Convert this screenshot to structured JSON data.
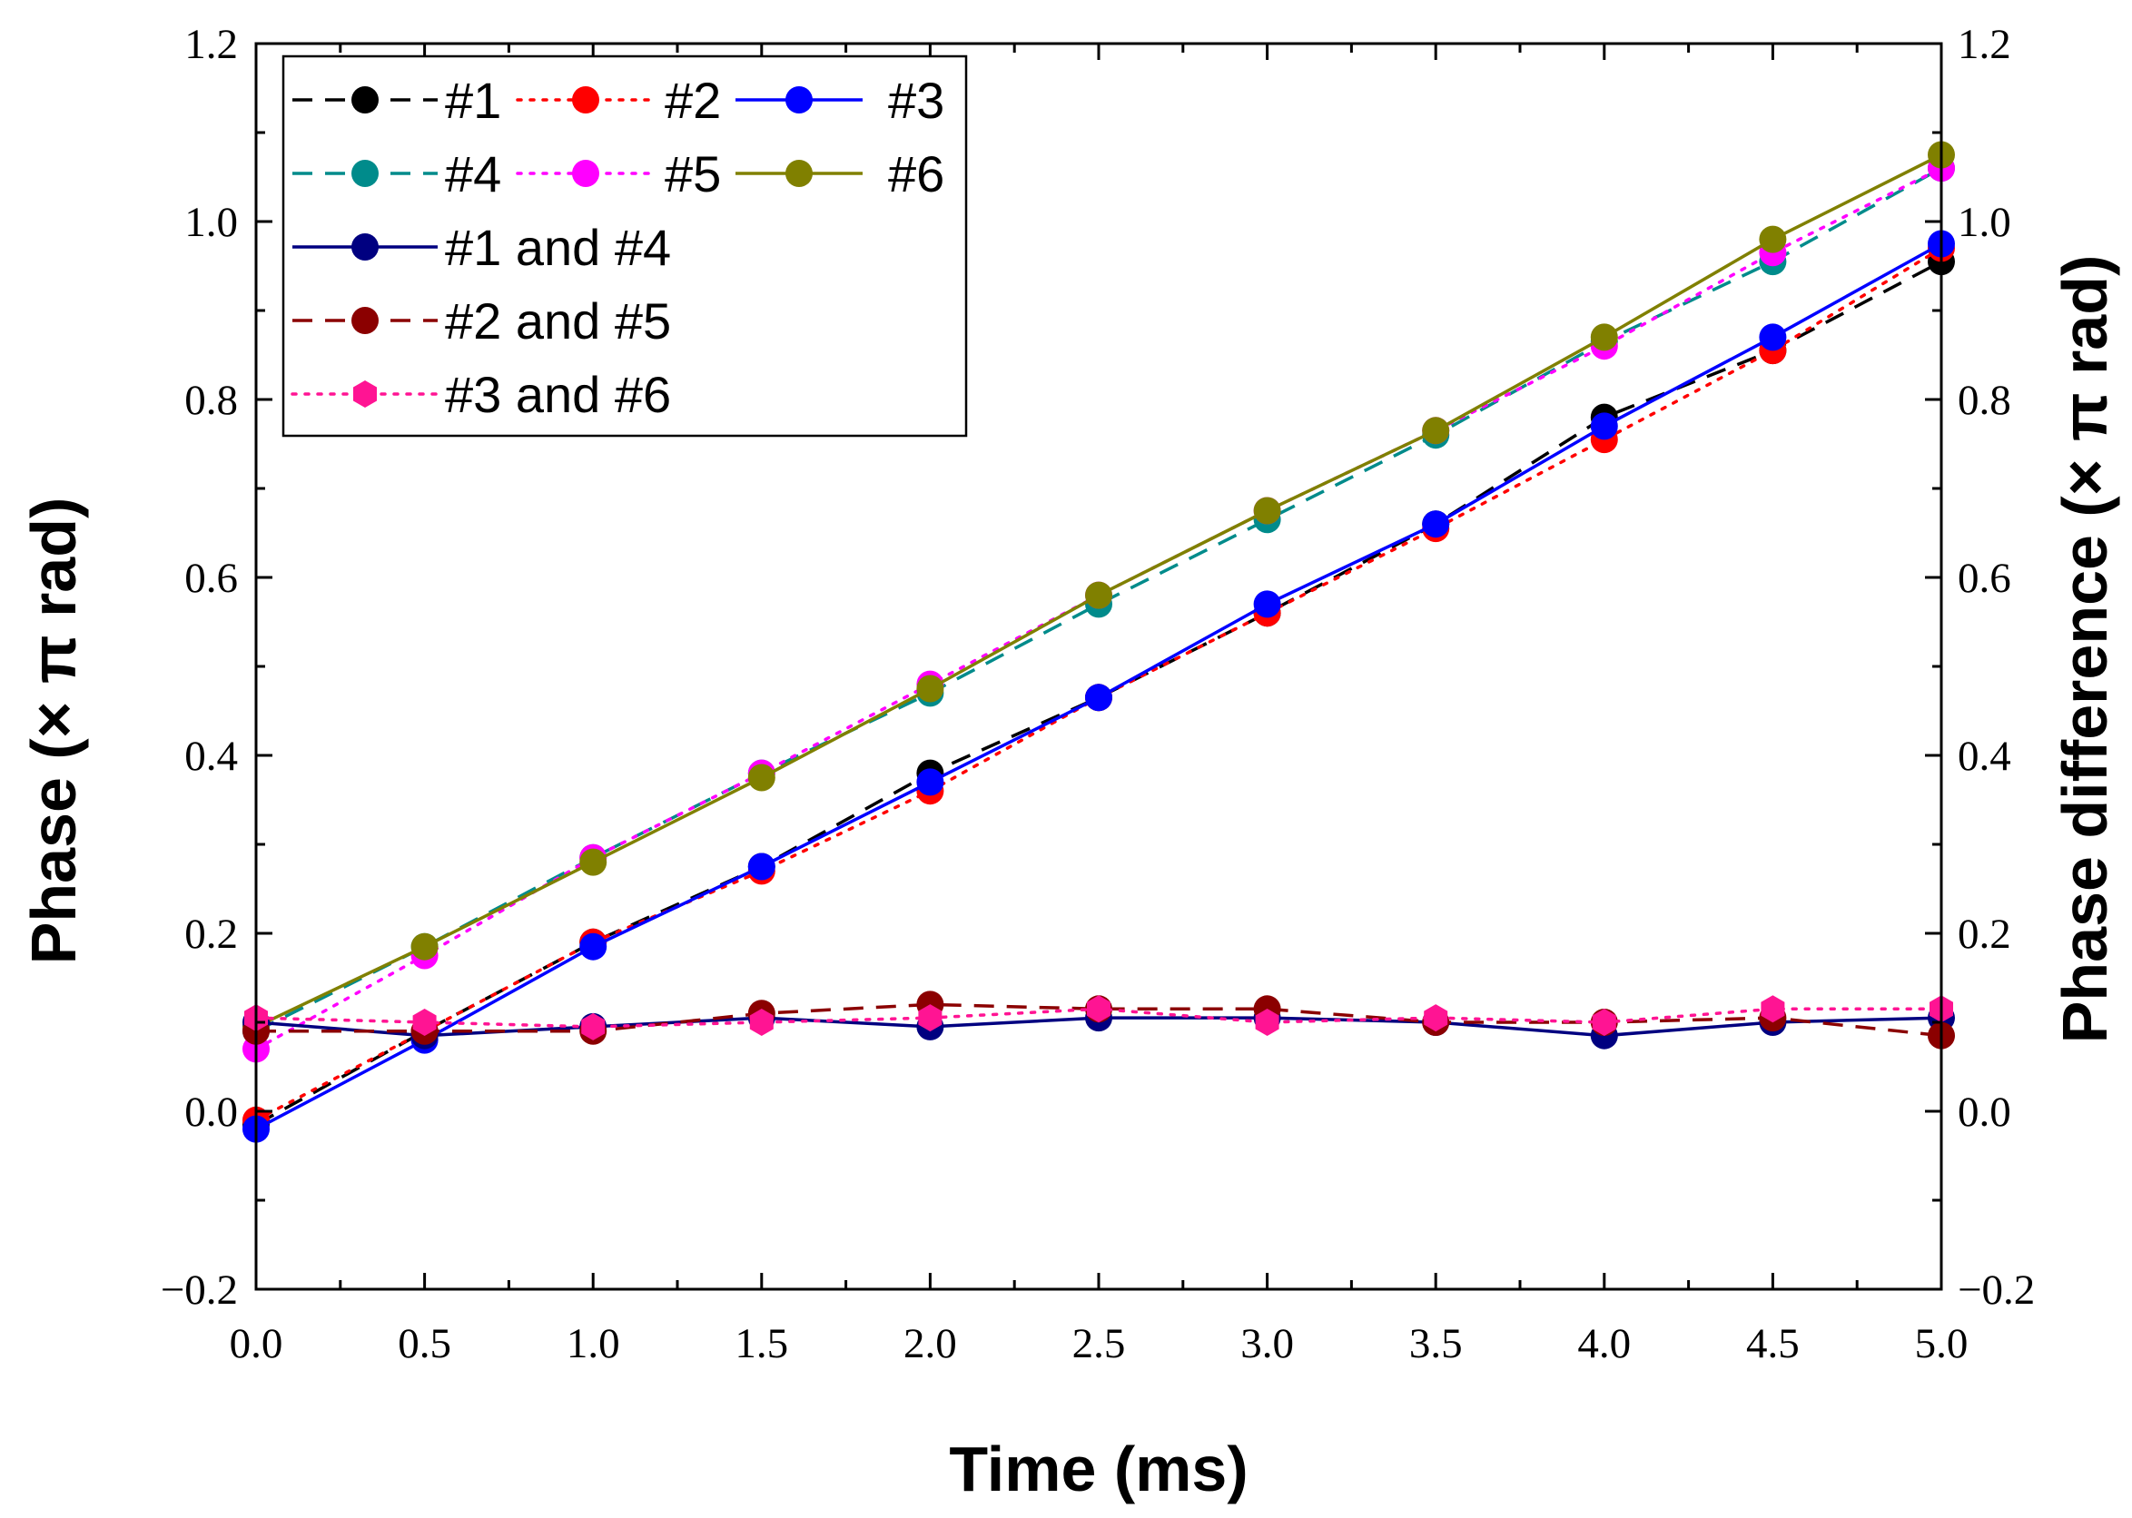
{
  "chart_data": {
    "type": "line",
    "title": "",
    "xlabel": "Time (ms)",
    "ylabel_left": "Phase (× π  rad)",
    "ylabel_right": "Phase difference (× π  rad)",
    "xlim": [
      0.0,
      5.0
    ],
    "ylim": [
      -0.2,
      1.2
    ],
    "y2lim": [
      -0.2,
      1.2
    ],
    "x_ticks": [
      "0.0",
      "0.5",
      "1.0",
      "1.5",
      "2.0",
      "2.5",
      "3.0",
      "3.5",
      "4.0",
      "4.5",
      "5.0"
    ],
    "y_ticks": [
      "−0.2",
      "0.0",
      "0.2",
      "0.4",
      "0.6",
      "0.8",
      "1.0",
      "1.2"
    ],
    "y2_ticks": [
      "−0.2",
      "0.0",
      "0.2",
      "0.4",
      "0.6",
      "0.8",
      "1.0",
      "1.2"
    ],
    "grid": false,
    "legend_position": "top-left",
    "x": [
      0.0,
      0.5,
      1.0,
      1.5,
      2.0,
      2.5,
      3.0,
      3.5,
      4.0,
      4.5,
      5.0
    ],
    "series": [
      {
        "name": "#1",
        "color": "#000000",
        "line": "dashed",
        "marker": "circle",
        "axis": "left",
        "values": [
          -0.015,
          0.09,
          0.19,
          0.275,
          0.38,
          0.465,
          0.56,
          0.66,
          0.78,
          0.855,
          0.955
        ]
      },
      {
        "name": "#2",
        "color": "#ff0000",
        "line": "dotted",
        "marker": "circle",
        "axis": "left",
        "values": [
          -0.01,
          0.09,
          0.19,
          0.27,
          0.36,
          0.465,
          0.56,
          0.655,
          0.755,
          0.855,
          0.97
        ]
      },
      {
        "name": "#3",
        "color": "#0000ff",
        "line": "solid",
        "marker": "circle",
        "axis": "left",
        "values": [
          -0.02,
          0.08,
          0.185,
          0.275,
          0.37,
          0.465,
          0.57,
          0.66,
          0.77,
          0.87,
          0.975
        ]
      },
      {
        "name": "#4",
        "color": "#008b8b",
        "line": "dashed",
        "marker": "circle",
        "axis": "left",
        "values": [
          0.09,
          0.185,
          0.285,
          0.38,
          0.47,
          0.57,
          0.665,
          0.76,
          0.865,
          0.955,
          1.06
        ]
      },
      {
        "name": "#5",
        "color": "#ff00ff",
        "line": "dotted",
        "marker": "circle",
        "axis": "left",
        "values": [
          0.07,
          0.175,
          0.285,
          0.38,
          0.48,
          0.58,
          0.675,
          0.765,
          0.86,
          0.965,
          1.06
        ]
      },
      {
        "name": "#6",
        "color": "#808000",
        "line": "solid",
        "marker": "circle",
        "axis": "left",
        "values": [
          0.095,
          0.185,
          0.28,
          0.375,
          0.475,
          0.58,
          0.675,
          0.765,
          0.87,
          0.98,
          1.075
        ]
      },
      {
        "name": "#1 and #4",
        "color": "#000080",
        "line": "solid",
        "marker": "circle",
        "axis": "right",
        "values": [
          0.1,
          0.085,
          0.095,
          0.105,
          0.095,
          0.105,
          0.105,
          0.1,
          0.085,
          0.1,
          0.105
        ]
      },
      {
        "name": "#2 and #5",
        "color": "#8b0000",
        "line": "dashed",
        "marker": "circle",
        "axis": "right",
        "values": [
          0.09,
          0.09,
          0.09,
          0.11,
          0.12,
          0.115,
          0.115,
          0.1,
          0.1,
          0.105,
          0.085
        ]
      },
      {
        "name": "#3 and #6",
        "color": "#ff1493",
        "line": "dotted",
        "marker": "hexagon",
        "axis": "right",
        "values": [
          0.105,
          0.1,
          0.095,
          0.1,
          0.105,
          0.115,
          0.1,
          0.105,
          0.1,
          0.115,
          0.115
        ]
      }
    ]
  }
}
